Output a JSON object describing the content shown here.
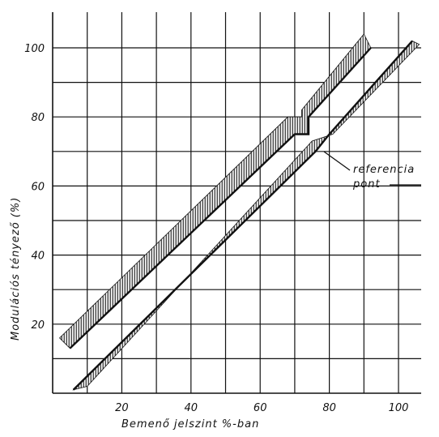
{
  "chart_data": {
    "type": "line",
    "title": "",
    "xlabel": "Bemenő jelszint  %-ban",
    "ylabel": "Modulációs tényező (%)",
    "xlim": [
      0,
      110
    ],
    "ylim": [
      0,
      110
    ],
    "x_ticks": [
      "20",
      "40",
      "60",
      "80",
      "100"
    ],
    "y_ticks": [
      "20",
      "40",
      "60",
      "80",
      "100"
    ],
    "grid": true,
    "series": [
      {
        "band": "upper",
        "lower_edge": [
          [
            5,
            13
          ],
          [
            70,
            75
          ],
          [
            74,
            75
          ],
          [
            74,
            80
          ],
          [
            92,
            100
          ]
        ],
        "upper_edge": [
          [
            2,
            16
          ],
          [
            68,
            80
          ],
          [
            72,
            80
          ],
          [
            72,
            82
          ],
          [
            90,
            104
          ]
        ]
      },
      {
        "band": "lower",
        "lower_edge": [
          [
            10,
            2
          ],
          [
            75,
            73
          ],
          [
            81,
            75
          ],
          [
            106,
            101
          ]
        ],
        "upper_edge": [
          [
            6,
            1
          ],
          [
            76,
            70
          ],
          [
            80,
            75
          ],
          [
            104,
            102
          ]
        ]
      }
    ],
    "annotations": [
      {
        "text": "referencia",
        "x": 88,
        "y": 65
      },
      {
        "text": "pont",
        "x": 88,
        "y": 60
      }
    ]
  }
}
